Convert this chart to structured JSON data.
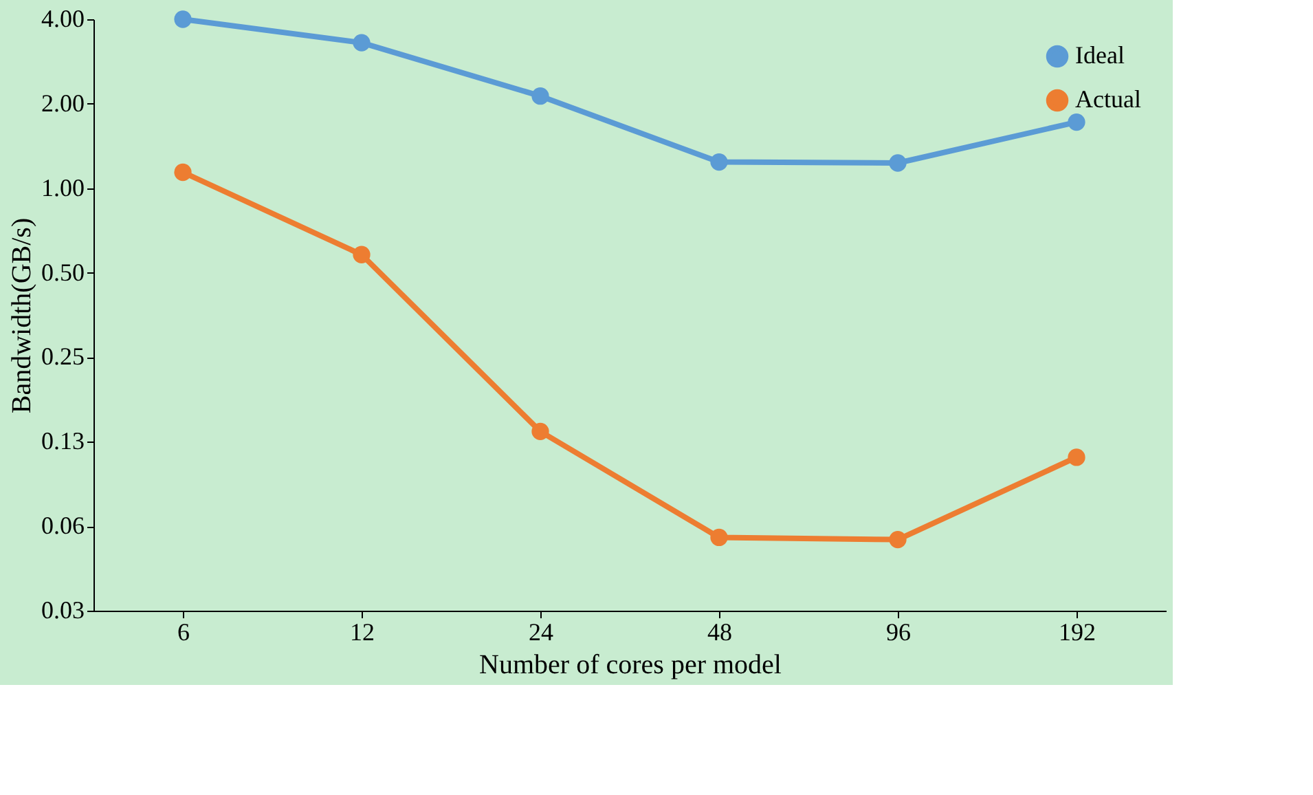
{
  "chart_data": {
    "type": "line",
    "xlabel": "Number of cores per model",
    "ylabel": "Bandwidth(GB/s)",
    "categories": [
      "6",
      "12",
      "24",
      "48",
      "96",
      "192"
    ],
    "series": [
      {
        "name": "Ideal",
        "color": "#5b9bd5",
        "values": [
          4.0,
          3.3,
          2.13,
          1.24,
          1.23,
          1.72
        ]
      },
      {
        "name": "Actual",
        "color": "#ed7d31",
        "values": [
          1.14,
          0.58,
          0.136,
          0.057,
          0.056,
          0.11
        ]
      }
    ],
    "log": "y",
    "ylim": [
      0.03125,
      4
    ],
    "yticks": [
      {
        "value": 0.03125,
        "label": "0.03"
      },
      {
        "value": 0.0625,
        "label": "0.06"
      },
      {
        "value": 0.125,
        "label": "0.13"
      },
      {
        "value": 0.25,
        "label": "0.25"
      },
      {
        "value": 0.5,
        "label": "0.50"
      },
      {
        "value": 1,
        "label": "1.00"
      },
      {
        "value": 2,
        "label": "2.00"
      },
      {
        "value": 4,
        "label": "4.00"
      }
    ],
    "grid": false,
    "legend": "top right",
    "marker": "circle",
    "line_style": "solid"
  }
}
